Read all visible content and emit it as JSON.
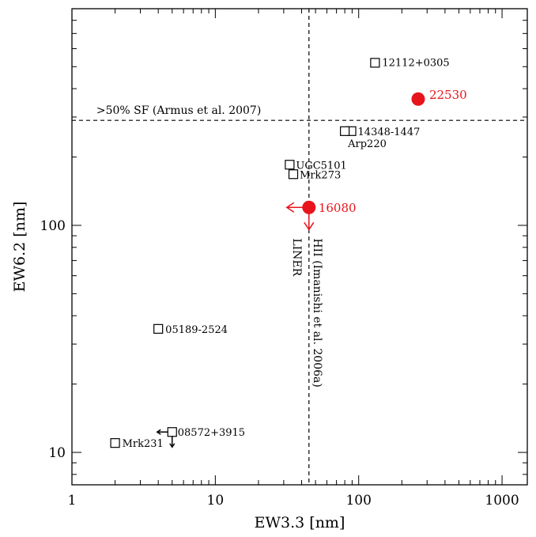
{
  "chart_data": {
    "type": "scatter",
    "xlabel": "EW3.3 [nm]",
    "ylabel": "EW6.2 [nm]",
    "xscale": "log",
    "yscale": "log",
    "xlim": [
      1,
      1500
    ],
    "ylim": [
      7.2,
      900
    ],
    "x_ticks": [
      {
        "value": 1,
        "label": "1"
      },
      {
        "value": 10,
        "label": "10"
      },
      {
        "value": 100,
        "label": "100"
      },
      {
        "value": 1000,
        "label": "1000"
      }
    ],
    "y_ticks": [
      {
        "value": 10,
        "label": "10"
      },
      {
        "value": 100,
        "label": "100"
      }
    ],
    "grid": false,
    "colors": {
      "reference_sample": "#000000",
      "highlight": "#e8141c"
    },
    "threshold_lines": {
      "horizontal": {
        "y": 290,
        "label": ">50% SF (Armus et al. 2007)"
      },
      "vertical": {
        "x": 45,
        "label_upper": "HII (Imanishi et al. 2006a)",
        "label_lower": "LINER"
      }
    },
    "series": [
      {
        "marker": "open-square",
        "color": "#000000",
        "points": [
          {
            "label": "12112+0305",
            "x": 130,
            "y": 520
          },
          {
            "label": "14348-1447",
            "x": 89,
            "y": 260
          },
          {
            "label": "Arp220",
            "x": 80,
            "y": 260
          },
          {
            "label": "UGC5101",
            "x": 33,
            "y": 185
          },
          {
            "label": "Mrk273",
            "x": 35,
            "y": 168
          },
          {
            "label": "05189-2524",
            "x": 4,
            "y": 35
          },
          {
            "label": "08572+3915",
            "x": 5,
            "y": 12.3,
            "upper_limit_x": true,
            "upper_limit_y": true
          },
          {
            "label": "Mrk231",
            "x": 2,
            "y": 11
          }
        ]
      },
      {
        "marker": "filled-circle",
        "color": "#e8141c",
        "points": [
          {
            "label": "22530",
            "x": 260,
            "y": 360
          },
          {
            "label": "16080",
            "x": 45,
            "y": 120,
            "upper_limit_x": true,
            "upper_limit_y": true
          }
        ]
      }
    ]
  }
}
